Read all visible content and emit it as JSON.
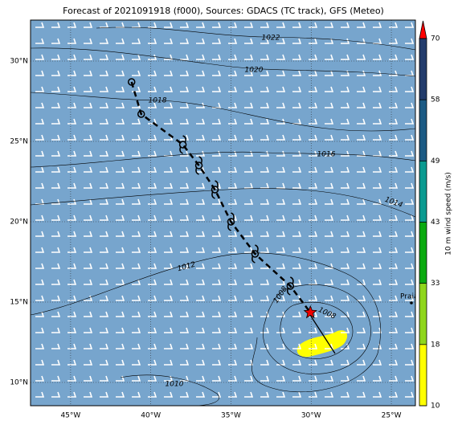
{
  "chart_data": {
    "type": "track-map",
    "title": "Forecast of 2021091918 (f000), Sources: GDACS (TC track), GFS (Meteo)",
    "xlim": [
      -47.5,
      -23.5
    ],
    "ylim": [
      8.55,
      32.55
    ],
    "xticks": [
      {
        "value": -45,
        "label": "45°W"
      },
      {
        "value": -40,
        "label": "40°W"
      },
      {
        "value": -35,
        "label": "35°W"
      },
      {
        "value": -30,
        "label": "30°W"
      },
      {
        "value": -25,
        "label": "25°W"
      }
    ],
    "yticks": [
      {
        "value": 10,
        "label": "10°N"
      },
      {
        "value": 15,
        "label": "15°N"
      },
      {
        "value": 20,
        "label": "20°N"
      },
      {
        "value": 25,
        "label": "25°N"
      },
      {
        "value": 30,
        "label": "30°N"
      }
    ],
    "grid": true,
    "track": {
      "lon": [
        -41.2,
        -40.6,
        -38.0,
        -37.0,
        -36.0,
        -35.0,
        -33.5,
        -31.3,
        -30.05
      ],
      "lat": [
        28.7,
        26.7,
        24.8,
        23.5,
        22.0,
        20.0,
        18.0,
        16.0,
        14.35
      ],
      "markers": [
        "circle",
        "circle",
        "storm",
        "storm",
        "storm",
        "storm",
        "storm",
        "storm",
        "star"
      ]
    },
    "isobar_labels": [
      "1022",
      "1020",
      "1018",
      "1016",
      "1014",
      "1012",
      "1010",
      "1008",
      "1008"
    ],
    "city": "Praia",
    "colorbar": {
      "label": "10 m wind speed (m/s)",
      "levels": [
        10,
        18,
        33,
        43,
        49,
        58,
        70
      ],
      "colors": [
        "#ffff00",
        "#8fd61c",
        "#0aaa10",
        "#0a9a90",
        "#1b5a84",
        "#233c6c"
      ],
      "extend_color": "#ff0000"
    }
  }
}
